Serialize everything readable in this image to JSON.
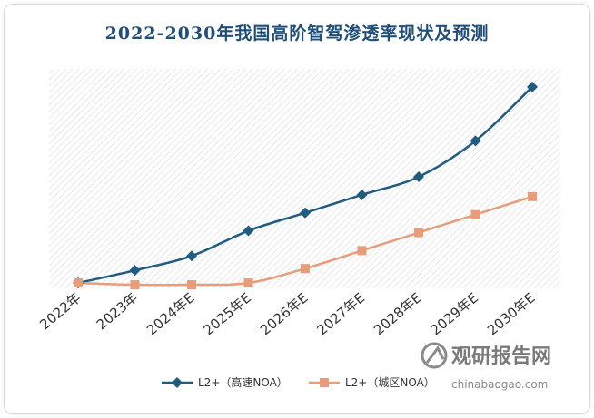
{
  "chart_data": {
    "type": "line",
    "title": "2022-2030年我国高阶智驾渗透率现状及预测",
    "categories": [
      "2022年",
      "2023年",
      "2024年E",
      "2025年E",
      "2026年E",
      "2027年E",
      "2028年E",
      "2029年E",
      "2030年E"
    ],
    "series": [
      {
        "name": "L2+（高速NOA）",
        "color": "#1f5c80",
        "marker": "diamond",
        "values": [
          1,
          8,
          16,
          30,
          40,
          50,
          60,
          80,
          110
        ]
      },
      {
        "name": "L2+（城区NOA）",
        "color": "#e89d7a",
        "marker": "square",
        "values": [
          1,
          0,
          0,
          1,
          9,
          19,
          29,
          39,
          49
        ]
      }
    ],
    "ylim": [
      -2,
      120
    ],
    "grid": false,
    "legend": "bottom-center",
    "background": "diagonal-hatch"
  },
  "watermark": {
    "name": "观研报告网",
    "url": "chinabaogao.com"
  }
}
